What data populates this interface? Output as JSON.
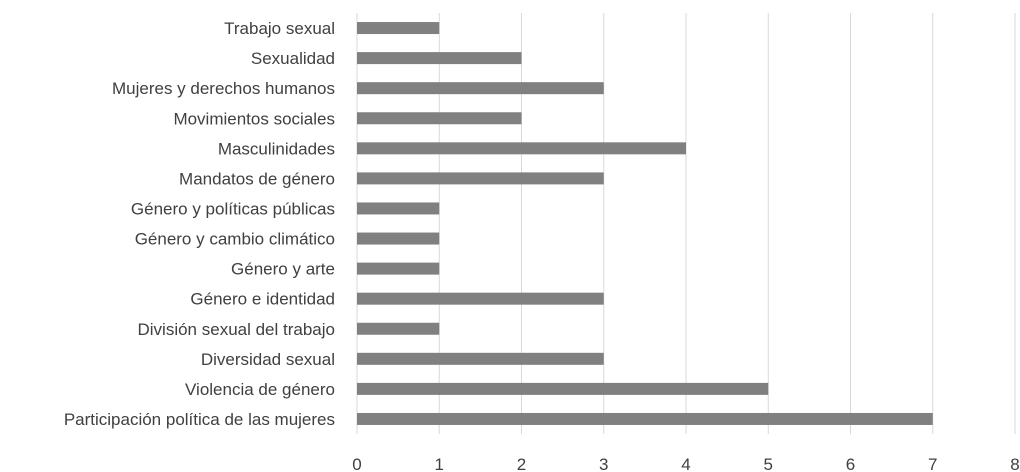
{
  "chart_data": {
    "type": "bar",
    "orientation": "horizontal",
    "categories": [
      "Trabajo sexual",
      "Sexualidad",
      "Mujeres y derechos humanos",
      "Movimientos sociales",
      "Masculinidades",
      "Mandatos de género",
      "Género y políticas públicas",
      "Género y cambio climático",
      "Género y arte",
      "Género e identidad",
      "División sexual del trabajo",
      "Diversidad sexual",
      "Violencia de género",
      "Participación política de las mujeres"
    ],
    "values": [
      1,
      2,
      3,
      2,
      4,
      3,
      1,
      1,
      1,
      3,
      1,
      3,
      5,
      7
    ],
    "xlim": [
      0,
      8
    ],
    "xticks": [
      "0",
      "1",
      "2",
      "3",
      "4",
      "5",
      "6",
      "7",
      "8"
    ],
    "grid": true,
    "bar_color": "#808080",
    "grid_color": "#d9d9d9",
    "text_color": "#404040"
  }
}
